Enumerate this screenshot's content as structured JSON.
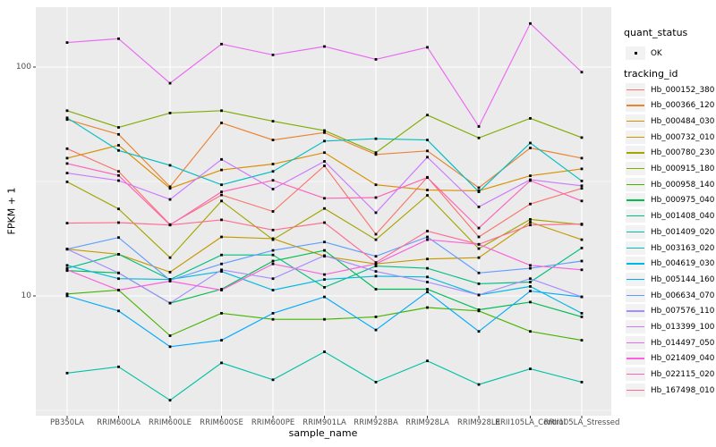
{
  "chart_data": {
    "type": "line",
    "title": "",
    "xlabel": "sample_name",
    "ylabel": "FPKM + 1",
    "y_scale": "log10",
    "y_ticks": [
      100,
      10
    ],
    "y_minor_gridlines": [
      31.6,
      3.16
    ],
    "ylim": [
      3.0,
      183
    ],
    "grid": "on",
    "panel_bg": "#EBEBEB",
    "grid_color": "#FFFFFF",
    "point_marker": "small-black-square",
    "legend_position": "right",
    "categories": [
      "PB350LA",
      "RRIM600LA",
      "RRIM600LE",
      "RRIM600SE",
      "RRIM600PE",
      "RRIM901LA",
      "RRIM928BA",
      "RRIM928LA",
      "RRIM928LE",
      "RRII105LA_Control",
      "RRII105LA_Stressed"
    ],
    "series": [
      {
        "name": "Hb_000152_380",
        "color": "#F8766D",
        "values": [
          44,
          35,
          20.5,
          27.6,
          23.4,
          37,
          18.6,
          33,
          18.1,
          25.2,
          29.5
        ]
      },
      {
        "name": "Hb_000366_120",
        "color": "#EB8335",
        "values": [
          59,
          50.8,
          30,
          57,
          48,
          51.7,
          41.5,
          43,
          29.7,
          44.3,
          40
        ]
      },
      {
        "name": "Hb_000484_030",
        "color": "#DA8F00",
        "values": [
          40,
          45.5,
          29.5,
          35.5,
          37.7,
          42.3,
          30.6,
          29,
          28.8,
          33.5,
          35.9
        ]
      },
      {
        "name": "Hb_000732_010",
        "color": "#C49A00",
        "values": [
          16,
          15.2,
          12.7,
          18.1,
          17.8,
          14.9,
          13.8,
          14.5,
          14.7,
          21,
          17.6
        ]
      },
      {
        "name": "Hb_000780_230",
        "color": "#A5A500",
        "values": [
          31.5,
          24,
          14.7,
          26,
          17.6,
          24.1,
          17.6,
          27.5,
          16.1,
          21.6,
          20.5
        ]
      },
      {
        "name": "Hb_000915_180",
        "color": "#80AD00",
        "values": [
          64.5,
          54.5,
          63,
          64.5,
          58,
          52.8,
          42.3,
          61.7,
          49,
          59.7,
          49.2
        ]
      },
      {
        "name": "Hb_000958_140",
        "color": "#46B500",
        "values": [
          10.2,
          10.6,
          6.7,
          8.4,
          7.9,
          7.9,
          8.1,
          8.9,
          8.6,
          7.0,
          6.4
        ]
      },
      {
        "name": "Hb_000975_040",
        "color": "#00BC51",
        "values": [
          12.9,
          12.6,
          9.3,
          10.7,
          14.2,
          15.8,
          10.7,
          10.7,
          8.7,
          9.4,
          8.1
        ]
      },
      {
        "name": "Hb_001408_040",
        "color": "#00C081",
        "values": [
          13.2,
          15.2,
          11.8,
          15.1,
          15.1,
          10.9,
          13.5,
          13.2,
          11.3,
          11.5,
          16.2
        ]
      },
      {
        "name": "Hb_001409_020",
        "color": "#00C1A5",
        "values": [
          4.6,
          4.9,
          3.5,
          5.1,
          4.3,
          5.7,
          4.2,
          5.2,
          4.1,
          4.8,
          4.2
        ]
      },
      {
        "name": "Hb_003163_020",
        "color": "#00BEC3",
        "values": [
          60,
          43.2,
          37.2,
          30.6,
          35,
          47.5,
          48.6,
          48,
          28.5,
          46.6,
          31.8
        ]
      },
      {
        "name": "Hb_004619_030",
        "color": "#00B8E3",
        "values": [
          13.6,
          11.9,
          11.8,
          12.8,
          10.6,
          11.8,
          12.2,
          12.1,
          10.1,
          11.0,
          8.4
        ]
      },
      {
        "name": "Hb_005144_160",
        "color": "#00AAFF",
        "values": [
          10.0,
          8.6,
          6.0,
          6.4,
          8.4,
          9.9,
          7.1,
          10.4,
          7.0,
          10.5,
          9.9
        ]
      },
      {
        "name": "Hb_006634_070",
        "color": "#619CFF",
        "values": [
          16,
          18,
          11.7,
          13.8,
          15.8,
          17.2,
          14.9,
          18.1,
          12.6,
          13.2,
          14.2
        ]
      },
      {
        "name": "Hb_007576_110",
        "color": "#A28CFF",
        "values": [
          16,
          12.6,
          9.3,
          13.0,
          11.9,
          15,
          12.8,
          11.5,
          10.1,
          11.9,
          9.9
        ]
      },
      {
        "name": "Hb_013399_100",
        "color": "#CB79FF",
        "values": [
          34.4,
          31.9,
          26.4,
          39.5,
          29.3,
          38.7,
          23.1,
          40.4,
          24.5,
          32.2,
          30.3
        ]
      },
      {
        "name": "Hb_014497_050",
        "color": "#EA6AF1",
        "values": [
          128,
          133,
          85,
          126,
          113,
          123,
          108,
          122,
          55,
          155,
          95
        ]
      },
      {
        "name": "Hb_021409_040",
        "color": "#F962DC",
        "values": [
          13,
          10.6,
          11.6,
          10.6,
          13.8,
          12.4,
          13.8,
          17.6,
          16.8,
          13.6,
          13.0
        ]
      },
      {
        "name": "Hb_022115_020",
        "color": "#FF62BA",
        "values": [
          37.9,
          33.6,
          20.4,
          28.5,
          32,
          26.7,
          26.9,
          32.9,
          19.8,
          31.9,
          26.0
        ]
      },
      {
        "name": "Hb_167498_010",
        "color": "#FF6C91",
        "values": [
          20.8,
          20.9,
          20.4,
          21.5,
          19.4,
          20.9,
          14,
          19.2,
          16.8,
          20.4,
          20.6
        ]
      }
    ]
  },
  "legend": {
    "quant_status_title": "quant_status",
    "quant_status_items": [
      {
        "label": "OK"
      }
    ],
    "tracking_id_title": "tracking_id"
  }
}
